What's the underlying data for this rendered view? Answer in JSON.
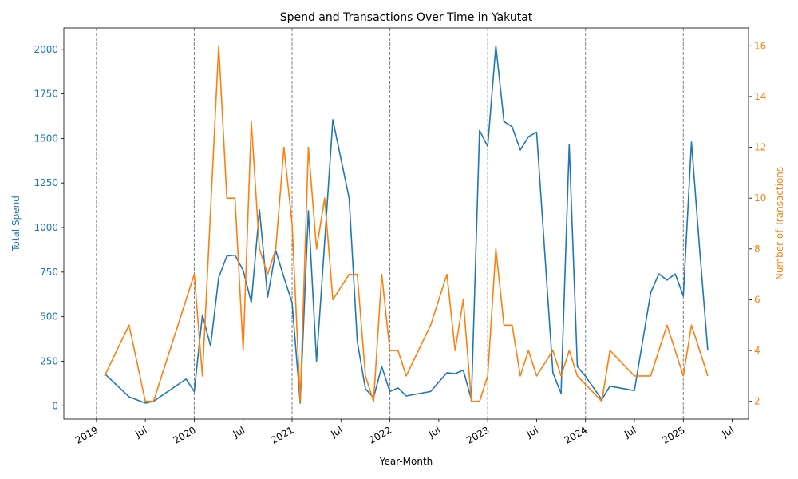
{
  "chart_data": {
    "type": "line",
    "title": "Spend and Transactions Over Time in Yakutat",
    "xlabel": "Year-Month",
    "ylabel_left": "Total Spend",
    "ylabel_right": "Number of Transactions",
    "x_tick_labels": [
      "2019",
      "Jul",
      "2020",
      "Jul",
      "2021",
      "Jul",
      "2022",
      "Jul",
      "2023",
      "Jul",
      "2024",
      "Jul",
      "2025",
      "Jul"
    ],
    "x_tick_dates": [
      "2019-01",
      "2019-07",
      "2020-01",
      "2020-07",
      "2021-01",
      "2021-07",
      "2022-01",
      "2022-07",
      "2023-01",
      "2023-07",
      "2024-01",
      "2024-07",
      "2025-01",
      "2025-07"
    ],
    "year_boundary_lines": [
      "2019-01",
      "2020-01",
      "2021-01",
      "2022-01",
      "2023-01",
      "2024-01",
      "2025-01"
    ],
    "ylim_left": [
      -75,
      2120
    ],
    "yticks_left": [
      0,
      250,
      500,
      750,
      1000,
      1250,
      1500,
      1750,
      2000
    ],
    "ylim_right": [
      1.3,
      16.7
    ],
    "yticks_right": [
      2,
      4,
      6,
      8,
      10,
      12,
      14,
      16
    ],
    "colors": {
      "spend": "#1f77b4",
      "transactions": "#ff7f0e",
      "boundary": "#808080"
    },
    "series": [
      {
        "axis": "left",
        "points": [
          [
            "2019-02",
            180
          ],
          [
            "2019-05",
            50
          ],
          [
            "2019-07",
            15
          ],
          [
            "2019-08",
            25
          ],
          [
            "2019-12",
            150
          ],
          [
            "2020-01",
            80
          ],
          [
            "2020-02",
            510
          ],
          [
            "2020-03",
            335
          ],
          [
            "2020-04",
            720
          ],
          [
            "2020-05",
            840
          ],
          [
            "2020-06",
            845
          ],
          [
            "2020-07",
            760
          ],
          [
            "2020-08",
            580
          ],
          [
            "2020-09",
            1100
          ],
          [
            "2020-10",
            610
          ],
          [
            "2020-11",
            870
          ],
          [
            "2020-12",
            720
          ],
          [
            "2021-01",
            580
          ],
          [
            "2021-02",
            15
          ],
          [
            "2021-03",
            1095
          ],
          [
            "2021-04",
            250
          ],
          [
            "2021-05",
            920
          ],
          [
            "2021-06",
            1605
          ],
          [
            "2021-08",
            1165
          ],
          [
            "2021-09",
            360
          ],
          [
            "2021-10",
            95
          ],
          [
            "2021-11",
            45
          ],
          [
            "2021-12",
            220
          ],
          [
            "2022-01",
            80
          ],
          [
            "2022-02",
            100
          ],
          [
            "2022-03",
            55
          ],
          [
            "2022-06",
            80
          ],
          [
            "2022-08",
            185
          ],
          [
            "2022-09",
            180
          ],
          [
            "2022-10",
            200
          ],
          [
            "2022-11",
            35
          ],
          [
            "2022-12",
            1545
          ],
          [
            "2023-01",
            1455
          ],
          [
            "2023-02",
            2020
          ],
          [
            "2023-03",
            1595
          ],
          [
            "2023-04",
            1565
          ],
          [
            "2023-05",
            1435
          ],
          [
            "2023-06",
            1510
          ],
          [
            "2023-07",
            1535
          ],
          [
            "2023-09",
            185
          ],
          [
            "2023-10",
            70
          ],
          [
            "2023-11",
            1465
          ],
          [
            "2023-12",
            220
          ],
          [
            "2024-01",
            165
          ],
          [
            "2024-03",
            35
          ],
          [
            "2024-04",
            110
          ],
          [
            "2024-07",
            85
          ],
          [
            "2024-09",
            635
          ],
          [
            "2024-10",
            740
          ],
          [
            "2024-11",
            705
          ],
          [
            "2024-12",
            740
          ],
          [
            "2025-01",
            615
          ],
          [
            "2025-02",
            1480
          ],
          [
            "2025-03",
            880
          ],
          [
            "2025-04",
            310
          ]
        ]
      },
      {
        "axis": "right",
        "points": [
          [
            "2019-02",
            3
          ],
          [
            "2019-05",
            5
          ],
          [
            "2019-07",
            2
          ],
          [
            "2019-08",
            2
          ],
          [
            "2020-01",
            7
          ],
          [
            "2020-02",
            3
          ],
          [
            "2020-04",
            16
          ],
          [
            "2020-05",
            10
          ],
          [
            "2020-06",
            10
          ],
          [
            "2020-07",
            4
          ],
          [
            "2020-08",
            13
          ],
          [
            "2020-09",
            8
          ],
          [
            "2020-10",
            7
          ],
          [
            "2020-11",
            8
          ],
          [
            "2020-12",
            12
          ],
          [
            "2021-01",
            9
          ],
          [
            "2021-02",
            2
          ],
          [
            "2021-03",
            12
          ],
          [
            "2021-04",
            8
          ],
          [
            "2021-05",
            10
          ],
          [
            "2021-06",
            6
          ],
          [
            "2021-08",
            7
          ],
          [
            "2021-09",
            7
          ],
          [
            "2021-10",
            3
          ],
          [
            "2021-11",
            2
          ],
          [
            "2021-12",
            7
          ],
          [
            "2022-01",
            4
          ],
          [
            "2022-02",
            4
          ],
          [
            "2022-03",
            3
          ],
          [
            "2022-06",
            5
          ],
          [
            "2022-08",
            7
          ],
          [
            "2022-09",
            4
          ],
          [
            "2022-10",
            6
          ],
          [
            "2022-11",
            2
          ],
          [
            "2022-12",
            2
          ],
          [
            "2023-01",
            3
          ],
          [
            "2023-02",
            8
          ],
          [
            "2023-03",
            5
          ],
          [
            "2023-04",
            5
          ],
          [
            "2023-05",
            3
          ],
          [
            "2023-06",
            4
          ],
          [
            "2023-07",
            3
          ],
          [
            "2023-09",
            4
          ],
          [
            "2023-10",
            3
          ],
          [
            "2023-11",
            4
          ],
          [
            "2023-12",
            3
          ],
          [
            "2024-03",
            2
          ],
          [
            "2024-04",
            4
          ],
          [
            "2024-07",
            3
          ],
          [
            "2024-09",
            3
          ],
          [
            "2024-11",
            5
          ],
          [
            "2025-01",
            3
          ],
          [
            "2025-02",
            5
          ],
          [
            "2025-04",
            3
          ]
        ]
      }
    ]
  }
}
